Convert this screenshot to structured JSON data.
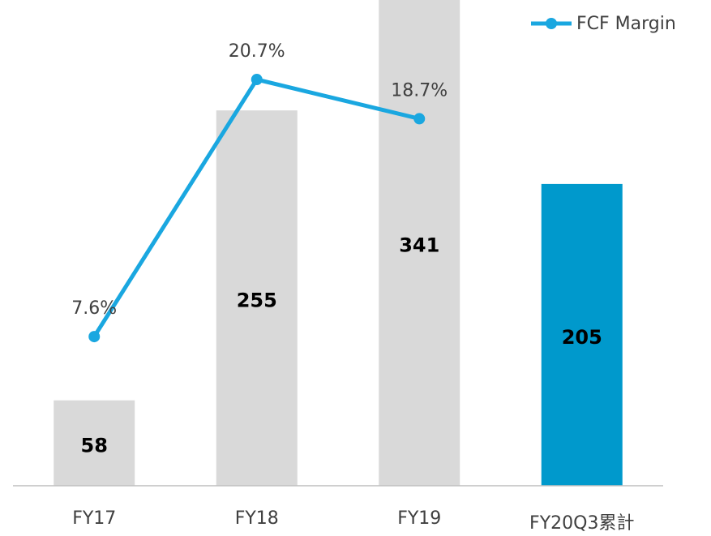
{
  "chart_data": {
    "type": "combo",
    "categories": [
      "FY17",
      "FY18",
      "FY19",
      "FY20Q3累計"
    ],
    "series": [
      {
        "type": "bar",
        "colors": [
          "#d9d9d9",
          "#d9d9d9",
          "#d9d9d9",
          "#0099cc"
        ],
        "values": [
          58,
          255,
          341,
          205
        ]
      },
      {
        "name": "FCF Margin",
        "type": "line",
        "axis": "y2",
        "color": "#1aa7e0",
        "values": [
          7.6,
          20.7,
          18.7,
          null
        ],
        "value_labels": [
          "7.6%",
          "20.7%",
          "18.7%",
          null
        ]
      }
    ],
    "ylim": [
      0,
      330
    ],
    "y2lim": [
      0,
      24.75
    ],
    "legend": "top-right"
  }
}
